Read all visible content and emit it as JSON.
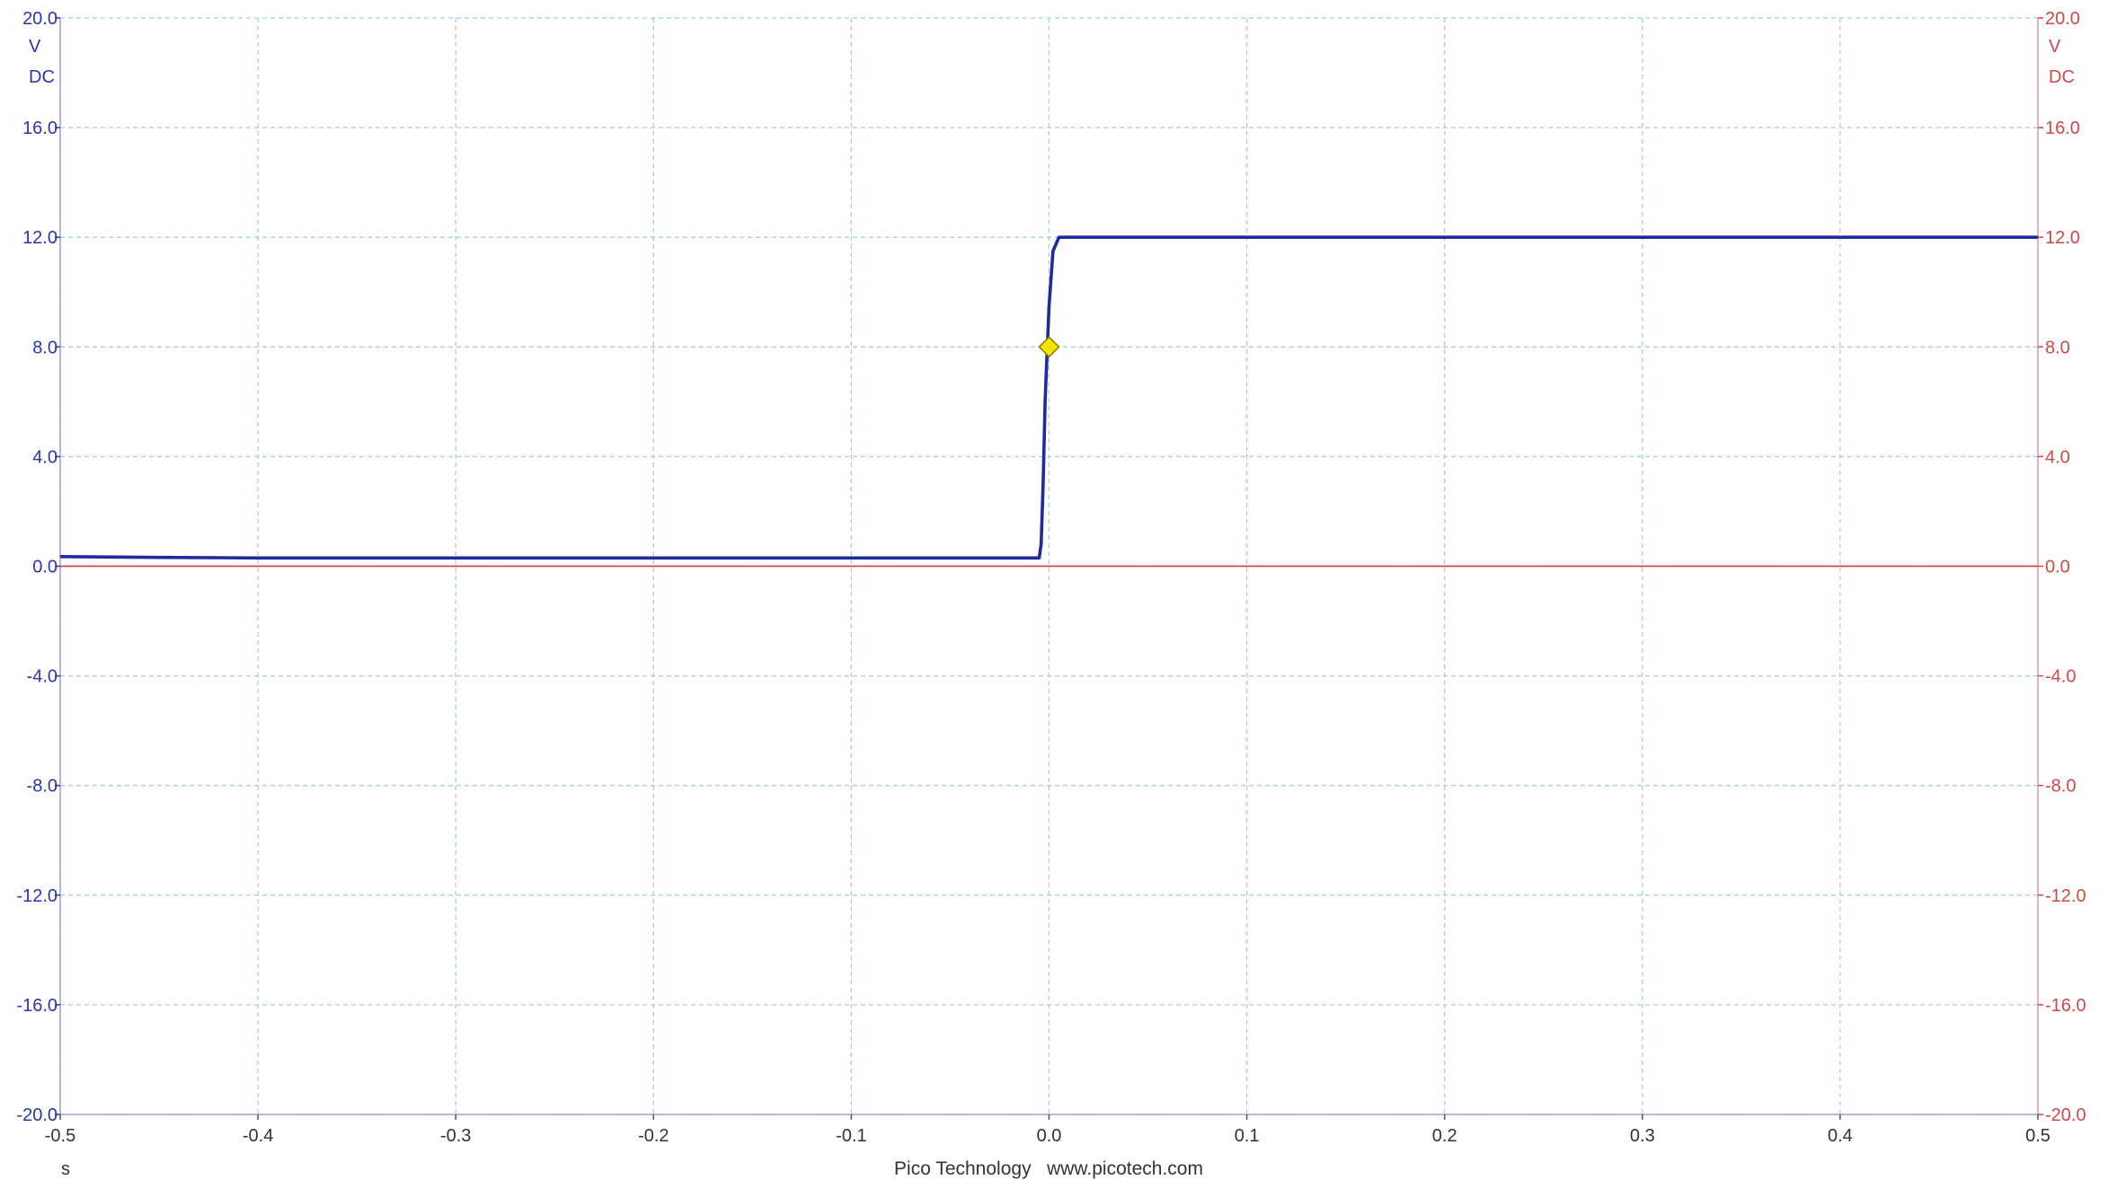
{
  "chart_data": {
    "type": "line",
    "x_unit": "s",
    "xlim": [
      -0.5,
      0.5
    ],
    "x_ticks": [
      "-0.5",
      "-0.4",
      "-0.3",
      "-0.2",
      "-0.1",
      "0.0",
      "0.1",
      "0.2",
      "0.3",
      "0.4",
      "0.5"
    ],
    "y_left": {
      "unit": "V",
      "coupling": "DC",
      "ylim": [
        -20,
        20
      ],
      "ticks": [
        "20.0",
        "16.0",
        "12.0",
        "8.0",
        "4.0",
        "0.0",
        "-4.0",
        "-8.0",
        "-12.0",
        "-16.0",
        "-20.0"
      ],
      "color": "#1f2a9e"
    },
    "y_right": {
      "unit": "V",
      "coupling": "DC",
      "ylim": [
        -20,
        20
      ],
      "ticks": [
        "20.0",
        "16.0",
        "12.0",
        "8.0",
        "4.0",
        "0.0",
        "-4.0",
        "-8.0",
        "-12.0",
        "-16.0",
        "-20.0"
      ],
      "color": "#d04848"
    },
    "grid": true,
    "grid_color": "#a8cfe0",
    "series": [
      {
        "axis": "left",
        "color": "#1f2a9e",
        "x": [
          -0.5,
          -0.45,
          -0.4,
          -0.3,
          -0.2,
          -0.1,
          -0.005,
          -0.004,
          -0.003,
          -0.002,
          -0.001,
          0.0,
          0.002,
          0.005,
          0.05,
          0.1,
          0.2,
          0.3,
          0.4,
          0.5
        ],
        "y": [
          0.35,
          0.32,
          0.3,
          0.3,
          0.3,
          0.3,
          0.3,
          0.8,
          3.0,
          6.0,
          7.8,
          9.5,
          11.5,
          12.0,
          12.0,
          12.0,
          12.0,
          12.0,
          12.0,
          12.0
        ]
      },
      {
        "axis": "right",
        "color": "#d04848",
        "x": [
          -0.5,
          0.5
        ],
        "y": [
          0.0,
          0.0
        ]
      }
    ],
    "trigger": {
      "x": 0.0,
      "y": 8.0,
      "color": "#f5e400"
    },
    "footer": "Pico Technology   www.picotech.com"
  }
}
